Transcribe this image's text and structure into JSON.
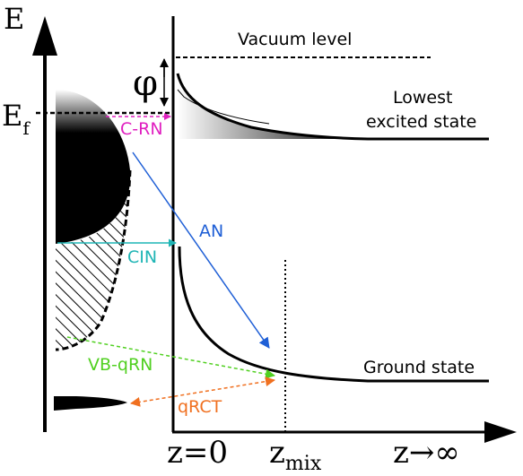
{
  "axes": {
    "energy_label": "E",
    "fermi_label_main": "E",
    "fermi_label_sub": "f",
    "z0_label": "z=0",
    "zmix_label_main": "z",
    "zmix_label_sub": "mix",
    "zinf_label": "z→∞"
  },
  "levels": {
    "vacuum": "Vacuum level",
    "work_function": "φ",
    "excited_line1": "Lowest",
    "excited_line2": "excited state",
    "ground": "Ground state"
  },
  "processes": {
    "crn": "C-RN",
    "an": "AN",
    "cin": "CIN",
    "vbqrn": "VB-qRN",
    "qrct": "qRCT"
  },
  "colors": {
    "crn": "#e020c0",
    "an": "#1f5fd6",
    "cin": "#1fb5b5",
    "vbqrn": "#50d020",
    "qrct": "#f07020",
    "ink": "#000000"
  }
}
